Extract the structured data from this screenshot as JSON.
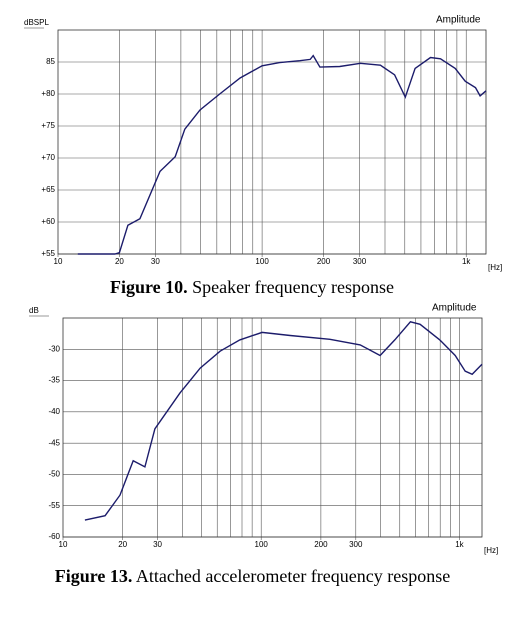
{
  "chart_data": [
    {
      "type": "line",
      "log_x": true,
      "grid": true,
      "y_label": "dBSPL",
      "x_unit": "[Hz]",
      "caption": {
        "label": "Figure 10.",
        "text": "Speaker frequency response"
      },
      "xlim": [
        10,
        1250
      ],
      "xticks": [
        10,
        20,
        30,
        100,
        200,
        300,
        {
          "value": 1000,
          "label": "1k"
        }
      ],
      "ylim": [
        55,
        90
      ],
      "yticks": [
        {
          "value": 55,
          "label": "+55"
        },
        {
          "value": 60,
          "label": "+60"
        },
        {
          "value": 65,
          "label": "+65"
        },
        {
          "value": 70,
          "label": "+70"
        },
        {
          "value": 75,
          "label": "+75"
        },
        {
          "value": 80,
          "label": "+80"
        },
        85
      ],
      "x": [
        12.5,
        19,
        20,
        22,
        25.2,
        31.6,
        37.5,
        41.8,
        49.6,
        62,
        78,
        100,
        122,
        153,
        172,
        178,
        192,
        240,
        303,
        380,
        446,
        503,
        562,
        668,
        748,
        883,
        989,
        1110,
        1170,
        1250
      ],
      "series": [
        {
          "name": "Amplitude",
          "color": "#1c1c6b",
          "values": [
            55,
            55,
            55.2,
            59.5,
            60.5,
            67.9,
            70.2,
            74.5,
            77.5,
            80,
            82.5,
            84.4,
            84.9,
            85.2,
            85.4,
            86,
            84.2,
            84.3,
            84.8,
            84.5,
            83,
            79.5,
            84,
            85.7,
            85.5,
            84,
            82,
            81,
            79.7,
            80.5
          ]
        }
      ]
    },
    {
      "type": "line",
      "log_x": true,
      "grid": true,
      "y_label": "dB",
      "x_unit": "[Hz]",
      "caption": {
        "label": "Figure 13.",
        "text": "Attached accelerometer frequency response"
      },
      "xlim": [
        10,
        1300
      ],
      "xticks": [
        10,
        20,
        30,
        100,
        200,
        300,
        {
          "value": 1000,
          "label": "1k"
        }
      ],
      "ylim": [
        -60,
        -25
      ],
      "yticks": [
        -60,
        -55,
        -50,
        -45,
        -40,
        -35,
        -30
      ],
      "x": [
        12.9,
        16.3,
        19.4,
        22.6,
        25.9,
        29.1,
        38.9,
        49.2,
        62,
        78,
        101,
        140,
        222,
        316,
        398,
        472,
        566,
        633,
        796,
        952,
        1070,
        1160,
        1300
      ],
      "series": [
        {
          "name": "Amplitude",
          "color": "#1c1c6b",
          "values": [
            -57.3,
            -56.6,
            -53.3,
            -47.8,
            -48.8,
            -42.7,
            -37,
            -33,
            -30.3,
            -28.5,
            -27.3,
            -27.8,
            -28.4,
            -29.3,
            -31,
            -28.5,
            -25.6,
            -26,
            -28.5,
            -31,
            -33.5,
            -34,
            -32.4
          ]
        }
      ]
    }
  ]
}
